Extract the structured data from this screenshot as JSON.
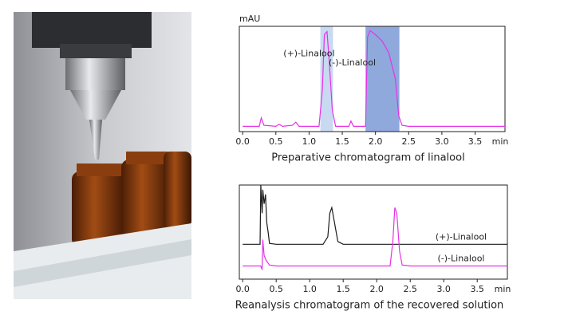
{
  "chart_data": [
    {
      "type": "line",
      "title": "Preparative chromatogram of linalool",
      "y_label": "mAU",
      "x_label": "min",
      "xlim": [
        -0.05,
        3.95
      ],
      "ylim": [
        0,
        100
      ],
      "xticks": [
        {
          "value": 0,
          "label": "0.0"
        },
        0.5,
        {
          "value": 1,
          "label": "1.0"
        },
        1.5,
        {
          "value": 2,
          "label": "2.0"
        },
        2.5,
        {
          "value": 3,
          "label": "3.0"
        },
        3.5
      ],
      "fractions": [
        {
          "x": [
            1.17,
            1.36
          ],
          "color": "#c9d9f2"
        },
        {
          "x": [
            1.85,
            2.36
          ],
          "color": "#8fa9dc"
        }
      ],
      "annotations": [
        "(+)-Linalool",
        "(-)-Linalool"
      ],
      "series": [
        {
          "color": "#e632e6",
          "x": [
            0,
            0.25,
            0.28,
            0.32,
            0.5,
            0.55,
            0.6,
            0.75,
            0.8,
            0.85,
            1.15,
            1.2,
            1.23,
            1.27,
            1.3,
            1.35,
            1.4,
            1.6,
            1.63,
            1.67,
            1.85,
            1.88,
            1.92,
            2.0,
            2.1,
            2.2,
            2.3,
            2.35,
            2.4,
            2.5,
            3.95
          ],
          "values": [
            5,
            5,
            13,
            6,
            5,
            7,
            5,
            6,
            9,
            5,
            5,
            40,
            92,
            95,
            70,
            20,
            5,
            5,
            10,
            5,
            5,
            90,
            96,
            92,
            86,
            75,
            50,
            15,
            6,
            5,
            5
          ]
        }
      ]
    },
    {
      "type": "line",
      "title": "Reanalysis chromatogram of the recovered solution",
      "x_label": "min",
      "xlim": [
        -0.05,
        3.95
      ],
      "ylim": [
        0,
        100
      ],
      "xticks": [
        {
          "value": 0,
          "label": "0.0"
        },
        0.5,
        {
          "value": 1,
          "label": "1.0"
        },
        1.5,
        {
          "value": 2,
          "label": "2.0"
        },
        2.5,
        {
          "value": 3,
          "label": "3.0"
        },
        3.5
      ],
      "series": [
        {
          "name": "(+)-Linalool",
          "color": "#1a1a1a",
          "x": [
            0,
            0.26,
            0.27,
            0.29,
            0.3,
            0.32,
            0.34,
            0.36,
            0.38,
            0.4,
            0.5,
            1.2,
            1.27,
            1.3,
            1.33,
            1.37,
            1.42,
            1.5,
            3.95
          ],
          "values": [
            37,
            37,
            100,
            70,
            95,
            80,
            90,
            60,
            50,
            38,
            37,
            37,
            45,
            70,
            76,
            60,
            40,
            37,
            37
          ]
        },
        {
          "name": "(-)-Linalool",
          "color": "#e632e6",
          "x": [
            0,
            0.27,
            0.29,
            0.3,
            0.32,
            0.35,
            0.4,
            0.5,
            2.2,
            2.24,
            2.27,
            2.3,
            2.34,
            2.38,
            2.5,
            3.95
          ],
          "values": [
            14,
            14,
            10,
            42,
            25,
            20,
            15,
            14,
            14,
            40,
            76,
            70,
            30,
            15,
            14,
            14
          ]
        }
      ]
    }
  ]
}
